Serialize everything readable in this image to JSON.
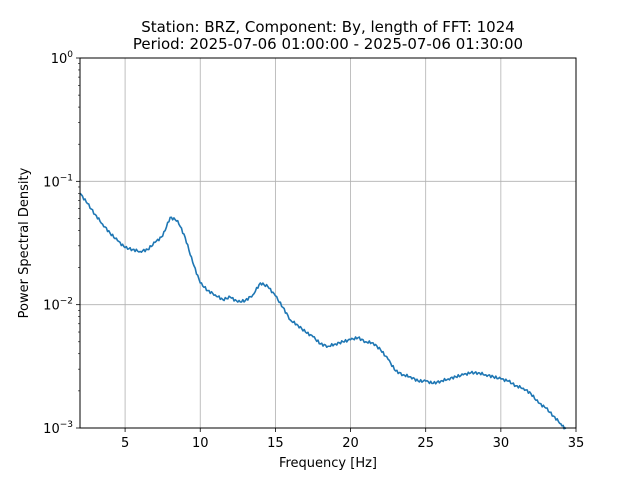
{
  "chart_data": {
    "type": "line",
    "title": "Station: BRZ, Component: By, length of FFT: 1024",
    "subtitle": "Period: 2025-07-06 01:00:00 - 2025-07-06 01:30:00",
    "xlabel": "Frequency [Hz]",
    "ylabel": "Power Spectral Density",
    "xlim": [
      2,
      35
    ],
    "ylim": [
      0.001,
      1
    ],
    "yscale": "log",
    "grid": true,
    "xticks": [
      {
        "value": 5,
        "label": "5"
      },
      {
        "value": 10,
        "label": "10"
      },
      {
        "value": 15,
        "label": "15"
      },
      {
        "value": 20,
        "label": "20"
      },
      {
        "value": 25,
        "label": "25"
      },
      {
        "value": 30,
        "label": "30"
      },
      {
        "value": 35,
        "label": "35"
      }
    ],
    "yticks": [
      {
        "value": 0.001,
        "base": "10",
        "exp": "−3"
      },
      {
        "value": 0.01,
        "base": "10",
        "exp": "−2"
      },
      {
        "value": 0.1,
        "base": "10",
        "exp": "−1"
      },
      {
        "value": 1,
        "base": "10",
        "exp": "0"
      }
    ],
    "series": [
      {
        "color": "#1f77b4",
        "x": [
          2.0,
          2.5,
          3.0,
          3.5,
          4.0,
          4.5,
          5.0,
          5.5,
          6.0,
          6.5,
          7.0,
          7.5,
          8.0,
          8.5,
          9.0,
          9.5,
          10.0,
          10.5,
          11.0,
          11.5,
          12.0,
          12.5,
          13.0,
          13.5,
          14.0,
          14.5,
          15.0,
          15.5,
          16.0,
          16.5,
          17.0,
          17.5,
          18.0,
          18.5,
          19.0,
          19.5,
          20.0,
          20.5,
          21.0,
          21.5,
          22.0,
          22.5,
          23.0,
          23.5,
          24.0,
          24.5,
          25.0,
          25.5,
          26.0,
          26.5,
          27.0,
          27.5,
          28.0,
          28.5,
          29.0,
          29.5,
          30.0,
          30.5,
          31.0,
          31.5,
          32.0,
          32.5,
          33.0,
          33.5,
          34.0,
          34.3
        ],
        "y": [
          0.08,
          0.066,
          0.054,
          0.045,
          0.038,
          0.033,
          0.029,
          0.028,
          0.027,
          0.028,
          0.032,
          0.036,
          0.051,
          0.048,
          0.035,
          0.022,
          0.015,
          0.013,
          0.012,
          0.011,
          0.0115,
          0.0105,
          0.0108,
          0.012,
          0.015,
          0.014,
          0.0118,
          0.0095,
          0.0075,
          0.0068,
          0.006,
          0.0055,
          0.0048,
          0.0046,
          0.0048,
          0.005,
          0.0052,
          0.0054,
          0.005,
          0.0049,
          0.0043,
          0.0036,
          0.0029,
          0.0027,
          0.0026,
          0.0024,
          0.0024,
          0.0023,
          0.0024,
          0.0025,
          0.0026,
          0.0027,
          0.0028,
          0.0028,
          0.0027,
          0.0026,
          0.0025,
          0.0024,
          0.0022,
          0.0021,
          0.0019,
          0.0016,
          0.00145,
          0.00125,
          0.00108,
          0.00098
        ]
      }
    ]
  }
}
